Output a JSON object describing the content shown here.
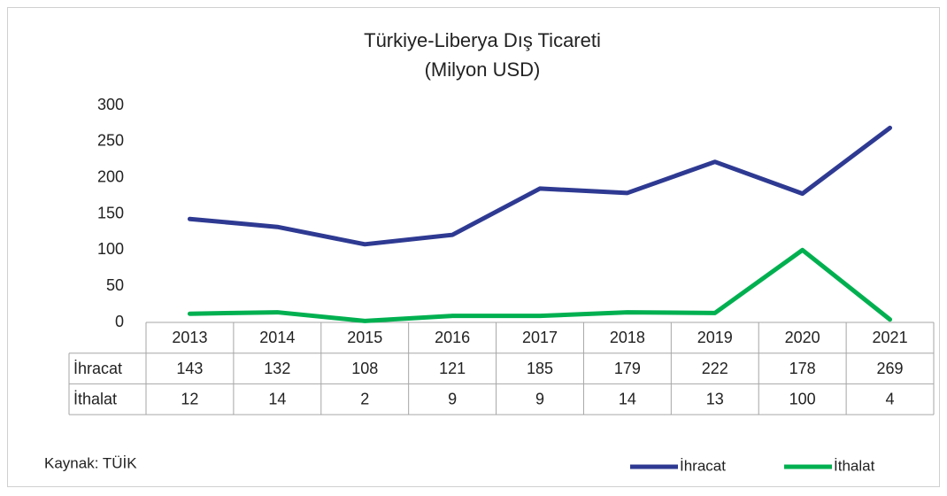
{
  "chart_data": {
    "type": "line",
    "title": "Türkiye-Liberya Dış Ticareti",
    "subtitle": "(Milyon USD)",
    "categories": [
      "2013",
      "2014",
      "2015",
      "2016",
      "2017",
      "2018",
      "2019",
      "2020",
      "2021"
    ],
    "series": [
      {
        "name": "İhracat",
        "color": "#2e3a92",
        "values": [
          143,
          132,
          108,
          121,
          185,
          179,
          222,
          178,
          269
        ]
      },
      {
        "name": "İthalat",
        "color": "#00b050",
        "values": [
          12,
          14,
          2,
          9,
          9,
          14,
          13,
          100,
          4
        ]
      }
    ],
    "ylim": [
      0,
      300
    ],
    "yticks": [
      0,
      50,
      100,
      150,
      200,
      250,
      300
    ],
    "grid": false,
    "source": "Kaynak: TÜİK",
    "legend": "bottom-right"
  }
}
